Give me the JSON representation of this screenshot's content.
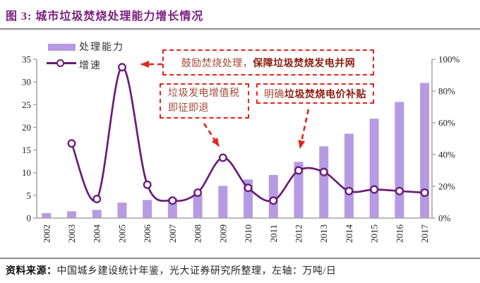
{
  "title": "图 3: 城市垃圾焚烧处理能力增长情况",
  "legend": {
    "bar_label": "处理能力",
    "line_label": "增速"
  },
  "annotations": {
    "box1": {
      "prefix": "鼓励焚烧处理，",
      "bold": "保障垃圾焚烧发电并网"
    },
    "box2": {
      "line1": "垃圾发电增值税",
      "line2": "即征即退"
    },
    "box3": {
      "prefix": "明确",
      "bold": "垃圾焚烧电价补贴"
    }
  },
  "footer": {
    "source_label": "资料来源：",
    "source_text": "中国城乡建设统计年鉴，光大证券研究所整理，",
    "axis_note": "左轴：万吨/日"
  },
  "colors": {
    "title_purple": "#7A1F7E",
    "bar_fill": "#B69BE3",
    "line_stroke": "#6A1B78",
    "annotation_red": "#E3251D",
    "axis_line": "#A6A6A6",
    "tick_text": "#222222"
  },
  "chart_data": {
    "type": "combo (bar + line)",
    "title": "城市垃圾焚烧处理能力增长情况",
    "categories": [
      "2002",
      "2003",
      "2004",
      "2005",
      "2006",
      "2007",
      "2008",
      "2009",
      "2010",
      "2011",
      "2012",
      "2013",
      "2014",
      "2015",
      "2016",
      "2017"
    ],
    "series": [
      {
        "name": "处理能力",
        "type": "bar",
        "axis": "left",
        "unit": "万吨/日",
        "values": [
          1.1,
          1.5,
          1.8,
          3.4,
          4.0,
          4.4,
          5.2,
          7.1,
          8.5,
          9.5,
          12.4,
          15.8,
          18.6,
          21.9,
          25.6,
          29.8
        ]
      },
      {
        "name": "增速",
        "type": "line",
        "axis": "right",
        "unit": "%",
        "values": [
          null,
          47,
          12,
          95,
          21,
          11,
          16,
          38,
          19,
          11,
          30,
          29,
          17,
          18,
          17,
          16
        ]
      }
    ],
    "left_axis": {
      "min": 0,
      "max": 35,
      "step": 5,
      "label": "万吨/日"
    },
    "right_axis": {
      "min": 0,
      "max": 100,
      "step": 20,
      "suffix": "%"
    },
    "grid": false,
    "legend_position": "top-left"
  }
}
